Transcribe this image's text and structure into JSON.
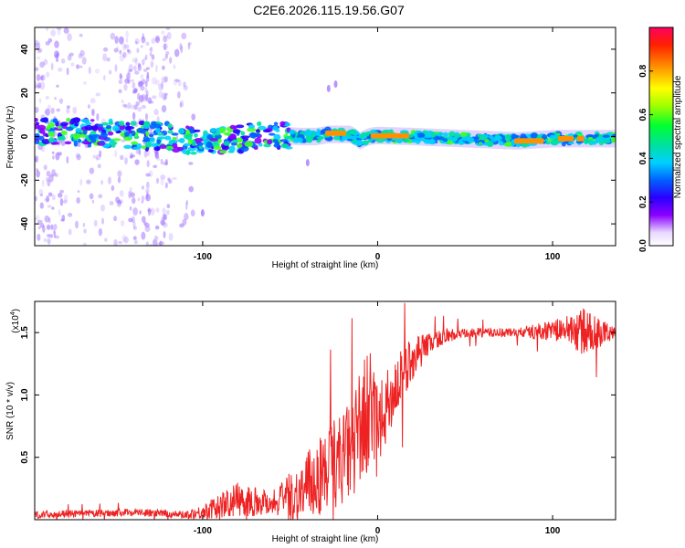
{
  "title": "C2E6.2026.115.19.56.G07",
  "colors": {
    "snr_line": "#ee2222",
    "band_low": "#5a00ff",
    "band_mid": "#00e0c0",
    "band_high": "#ee1144",
    "scatter": "#a070ff"
  },
  "chart_data": [
    {
      "type": "heatmap",
      "name": "spectrogram",
      "xlabel": "Height of straight line (km)",
      "ylabel": "Frequency (Hz)",
      "xlim": [
        -196,
        136
      ],
      "ylim": [
        -50,
        50
      ],
      "xticks": [
        -100,
        0,
        100
      ],
      "xtick_labels": [
        "-100",
        "0",
        "100"
      ],
      "yticks": [
        -40,
        -20,
        0,
        20,
        40
      ],
      "ytick_labels": [
        "-40",
        "-20",
        "0",
        "20",
        "40"
      ],
      "colorbar": {
        "label": "Normalized spectral amplitude",
        "range": [
          0,
          1
        ],
        "ticks": [
          0.0,
          0.2,
          0.4,
          0.6,
          0.8
        ],
        "tick_labels": [
          "0.0",
          "0.2",
          "0.4",
          "0.6",
          "0.8"
        ],
        "colormap": "rainbow (violet to red)"
      },
      "band_center": [
        [
          -196,
          2
        ],
        [
          -170,
          2
        ],
        [
          -150,
          1
        ],
        [
          -120,
          0
        ],
        [
          -100,
          -3
        ],
        [
          -80,
          -1
        ],
        [
          -60,
          1
        ],
        [
          -45,
          0
        ],
        [
          -35,
          0
        ],
        [
          -28,
          1
        ],
        [
          -15,
          1
        ],
        [
          -10,
          -2
        ],
        [
          -5,
          0
        ],
        [
          0,
          0.5
        ],
        [
          20,
          0
        ],
        [
          50,
          -1
        ],
        [
          80,
          -2
        ],
        [
          100,
          -1
        ],
        [
          136,
          -1
        ]
      ],
      "band_peaks": [
        [
          -30,
          -18,
          1.5,
          0.95
        ],
        [
          -4,
          18,
          0.3,
          0.97
        ],
        [
          78,
          95,
          -2,
          0.95
        ],
        [
          103,
          112,
          -1,
          0.9
        ],
        [
          114,
          118,
          -1,
          0.9
        ]
      ]
    },
    {
      "type": "line",
      "name": "snr",
      "xlabel": "Height of straight line (km)",
      "ylabel": "SNR (10 * v/v)",
      "scale_note": "(x10",
      "scale_exponent": "4",
      "xlim": [
        -196,
        136
      ],
      "ylim": [
        0,
        1.75
      ],
      "xticks": [
        -100,
        0,
        100
      ],
      "xtick_labels": [
        "-100",
        "0",
        "100"
      ],
      "yticks": [
        0.5,
        1.0,
        1.5
      ],
      "ytick_labels": [
        "0.5",
        "1.0",
        "1.5"
      ],
      "trend_x": [
        -196,
        -160,
        -140,
        -110,
        -100,
        -80,
        -60,
        -45,
        -35,
        -25,
        -15,
        -10,
        -5,
        0,
        5,
        10,
        20,
        30,
        40,
        60,
        80,
        100,
        110,
        120,
        136
      ],
      "trend_y": [
        0.04,
        0.05,
        0.06,
        0.04,
        0.06,
        0.16,
        0.14,
        0.2,
        0.33,
        0.45,
        0.55,
        0.75,
        0.85,
        0.7,
        0.9,
        1.05,
        1.3,
        1.42,
        1.48,
        1.5,
        1.5,
        1.52,
        1.52,
        1.5,
        1.5
      ],
      "noise_x": [
        -196,
        -160,
        -110,
        -100,
        -80,
        -60,
        -45,
        -30,
        -15,
        -5,
        0,
        10,
        20,
        30,
        50,
        80,
        100,
        110,
        118,
        136
      ],
      "noise_y": [
        0.03,
        0.03,
        0.03,
        0.06,
        0.14,
        0.1,
        0.25,
        0.35,
        0.4,
        0.55,
        0.35,
        0.25,
        0.18,
        0.08,
        0.04,
        0.04,
        0.08,
        0.12,
        0.2,
        0.04
      ]
    }
  ]
}
